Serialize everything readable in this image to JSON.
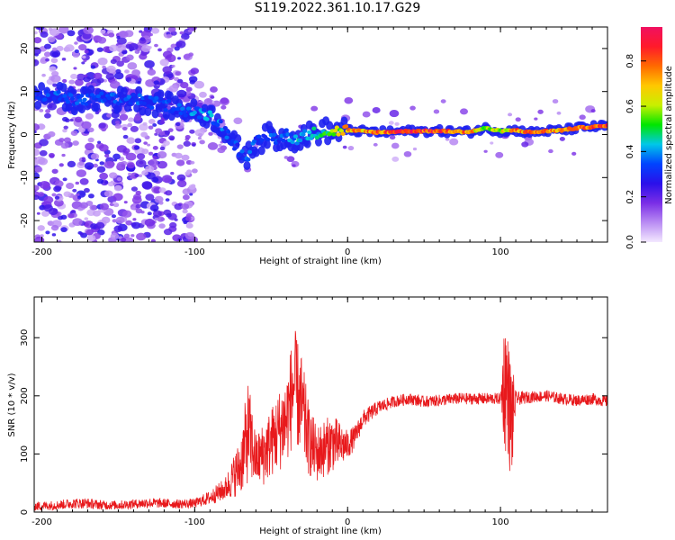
{
  "title": "S119.2022.361.10.17.G29",
  "chart_data": [
    {
      "type": "heatmap",
      "xlabel": "Height of straight line (km)",
      "ylabel": "Frequency (Hz)",
      "xlim": [
        -205,
        170
      ],
      "ylim": [
        -25,
        25
      ],
      "x_ticks": [
        -200,
        -100,
        0,
        100
      ],
      "y_ticks": [
        -20,
        -10,
        0,
        10,
        20
      ],
      "colorbar": {
        "label": "Normalized spectral amplitude",
        "range": [
          0.0,
          0.95
        ],
        "ticks": [
          "0.0",
          "0.2",
          "0.4",
          "0.6",
          "0.8"
        ],
        "colormap": [
          "#f3e8ff",
          "#b98cf3",
          "#7a2ee6",
          "#2a10ea",
          "#0044ff",
          "#00c8e8",
          "#00e600",
          "#c8f000",
          "#ffc800",
          "#ff6a00",
          "#ff1a2a",
          "#f01060"
        ]
      },
      "ridge": {
        "x": [
          -205,
          -190,
          -180,
          -170,
          -160,
          -150,
          -140,
          -130,
          -120,
          -110,
          -100,
          -95,
          -90,
          -85,
          -80,
          -75,
          -70,
          -65,
          -60,
          -55,
          -50,
          -45,
          -40,
          -35,
          -30,
          -25,
          -20,
          -15,
          -10,
          -5,
          0,
          20,
          40,
          60,
          80,
          90,
          100,
          110,
          120,
          130,
          140,
          150,
          160,
          170
        ],
        "y": [
          9,
          9,
          8,
          8,
          8.5,
          8,
          8.5,
          7.5,
          7,
          6,
          5,
          5,
          4.5,
          3,
          1,
          -2,
          -4,
          -5,
          -2,
          -1,
          0,
          -1.5,
          0,
          -1,
          -0.5,
          0,
          0.5,
          1,
          0.5,
          1,
          1,
          0.5,
          0.8,
          0.8,
          0.6,
          1.5,
          0.8,
          1,
          0.5,
          0.8,
          1,
          1.5,
          1.8,
          2
        ],
        "amplitude": [
          0.3,
          0.35,
          0.35,
          0.35,
          0.35,
          0.35,
          0.35,
          0.35,
          0.35,
          0.35,
          0.4,
          0.4,
          0.4,
          0.4,
          0.35,
          0.35,
          0.35,
          0.35,
          0.35,
          0.35,
          0.35,
          0.35,
          0.4,
          0.4,
          0.45,
          0.45,
          0.45,
          0.5,
          0.55,
          0.65,
          0.75,
          0.8,
          0.88,
          0.88,
          0.8,
          0.55,
          0.65,
          0.78,
          0.78,
          0.8,
          0.75,
          0.8,
          0.85,
          0.85
        ]
      }
    },
    {
      "type": "line",
      "xlabel": "Height of straight line (km)",
      "ylabel": "SNR (10 * v/v)",
      "xlim": [
        -205,
        170
      ],
      "ylim": [
        0,
        370
      ],
      "x_ticks": [
        -200,
        -100,
        0,
        100
      ],
      "y_ticks": [
        0,
        100,
        200,
        300
      ],
      "series": [
        {
          "color": "#e8191c",
          "x": [
            -205,
            -190,
            -180,
            -170,
            -160,
            -150,
            -140,
            -130,
            -120,
            -110,
            -100,
            -90,
            -80,
            -70,
            -65,
            -60,
            -55,
            -50,
            -45,
            -40,
            -35,
            -30,
            -25,
            -20,
            -15,
            -10,
            -5,
            0,
            5,
            10,
            20,
            30,
            40,
            50,
            60,
            70,
            80,
            90,
            100,
            103,
            105,
            107,
            110,
            120,
            130,
            140,
            150,
            160,
            170
          ],
          "y": [
            10,
            12,
            15,
            15,
            12,
            12,
            14,
            16,
            15,
            14,
            15,
            25,
            40,
            80,
            140,
            90,
            100,
            120,
            140,
            160,
            220,
            180,
            120,
            100,
            110,
            120,
            115,
            115,
            130,
            160,
            180,
            190,
            195,
            190,
            192,
            195,
            195,
            195,
            195,
            230,
            200,
            150,
            195,
            198,
            200,
            195,
            192,
            195,
            190
          ],
          "noise": [
            8,
            8,
            9,
            9,
            8,
            8,
            8,
            9,
            8,
            8,
            8,
            12,
            20,
            50,
            90,
            45,
            55,
            60,
            70,
            80,
            100,
            90,
            60,
            50,
            50,
            50,
            40,
            25,
            20,
            15,
            12,
            10,
            10,
            10,
            10,
            10,
            10,
            10,
            10,
            130,
            100,
            120,
            12,
            10,
            10,
            10,
            10,
            10,
            10
          ]
        }
      ]
    }
  ]
}
